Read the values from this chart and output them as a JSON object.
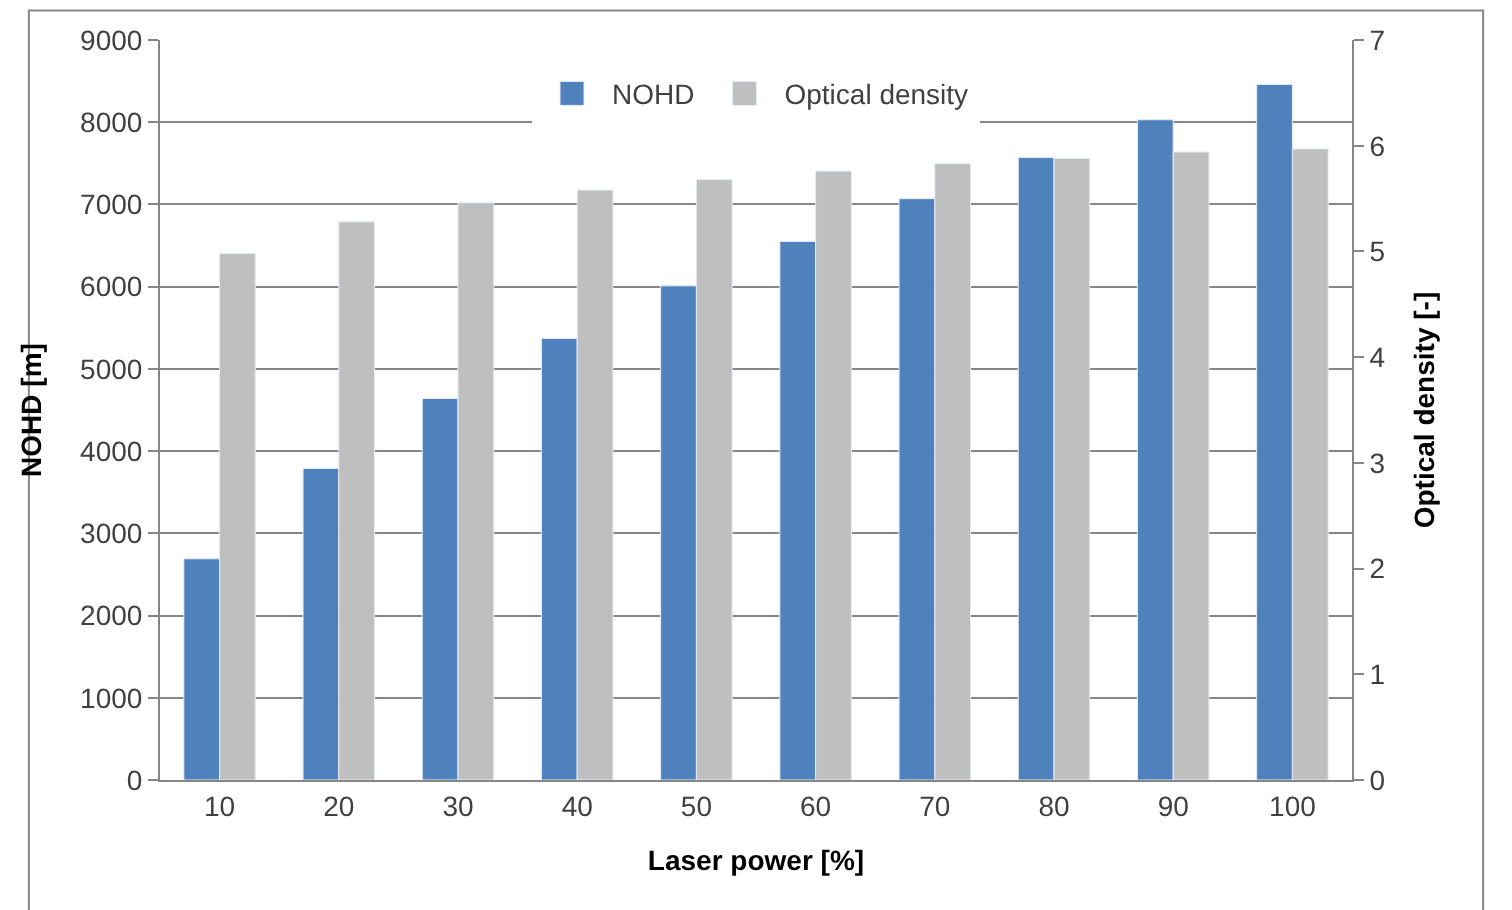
{
  "chart_data": {
    "type": "bar",
    "xlabel": "Laser power [%]",
    "ylabel": "NOHD [m]",
    "y2label": "Optical density [-]",
    "categories": [
      "10",
      "20",
      "30",
      "40",
      "50",
      "60",
      "70",
      "80",
      "90",
      "100"
    ],
    "series": [
      {
        "name": "NOHD",
        "color": "#4f81bd",
        "values": [
          2690,
          3790,
          4640,
          5370,
          6010,
          6550,
          7070,
          7570,
          8030,
          8460
        ]
      },
      {
        "name": "Optical density",
        "color": "#bfbfbf",
        "axis": "y2",
        "values": [
          4.98,
          5.28,
          5.46,
          5.58,
          5.68,
          5.76,
          5.83,
          5.88,
          5.94,
          5.97
        ]
      }
    ],
    "ylim": [
      0,
      9000
    ],
    "yticks": [
      0,
      1000,
      2000,
      3000,
      4000,
      5000,
      6000,
      7000,
      8000,
      9000
    ],
    "y2lim": [
      0,
      7
    ],
    "y2ticks": [
      0,
      1,
      2,
      3,
      4,
      5,
      6,
      7
    ],
    "grid": "y",
    "legend": "top"
  }
}
